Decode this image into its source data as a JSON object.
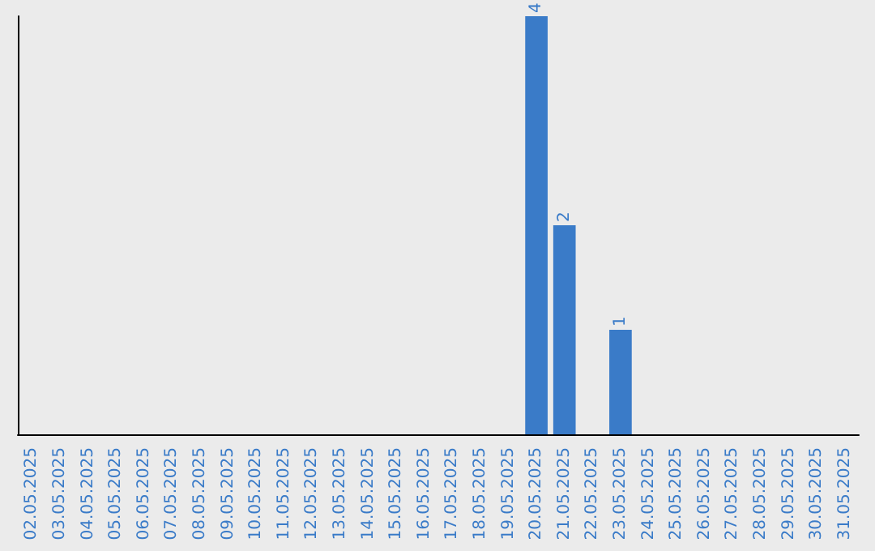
{
  "chart_data": {
    "type": "bar",
    "categories": [
      "02.05.2025",
      "03.05.2025",
      "04.05.2025",
      "05.05.2025",
      "06.05.2025",
      "07.05.2025",
      "08.05.2025",
      "09.05.2025",
      "10.05.2025",
      "11.05.2025",
      "12.05.2025",
      "13.05.2025",
      "14.05.2025",
      "15.05.2025",
      "16.05.2025",
      "17.05.2025",
      "18.05.2025",
      "19.05.2025",
      "20.05.2025",
      "21.05.2025",
      "22.05.2025",
      "23.05.2025",
      "24.05.2025",
      "25.05.2025",
      "26.05.2025",
      "27.05.2025",
      "28.05.2025",
      "29.05.2025",
      "30.05.2025",
      "31.05.2025"
    ],
    "values": [
      null,
      null,
      null,
      null,
      null,
      null,
      null,
      null,
      null,
      null,
      null,
      null,
      null,
      null,
      null,
      null,
      null,
      null,
      4,
      2,
      null,
      1,
      null,
      null,
      null,
      null,
      null,
      null,
      null,
      null
    ],
    "data_labels": true,
    "color": "#3a7bc8",
    "grid": false,
    "tick_labels": "x"
  }
}
